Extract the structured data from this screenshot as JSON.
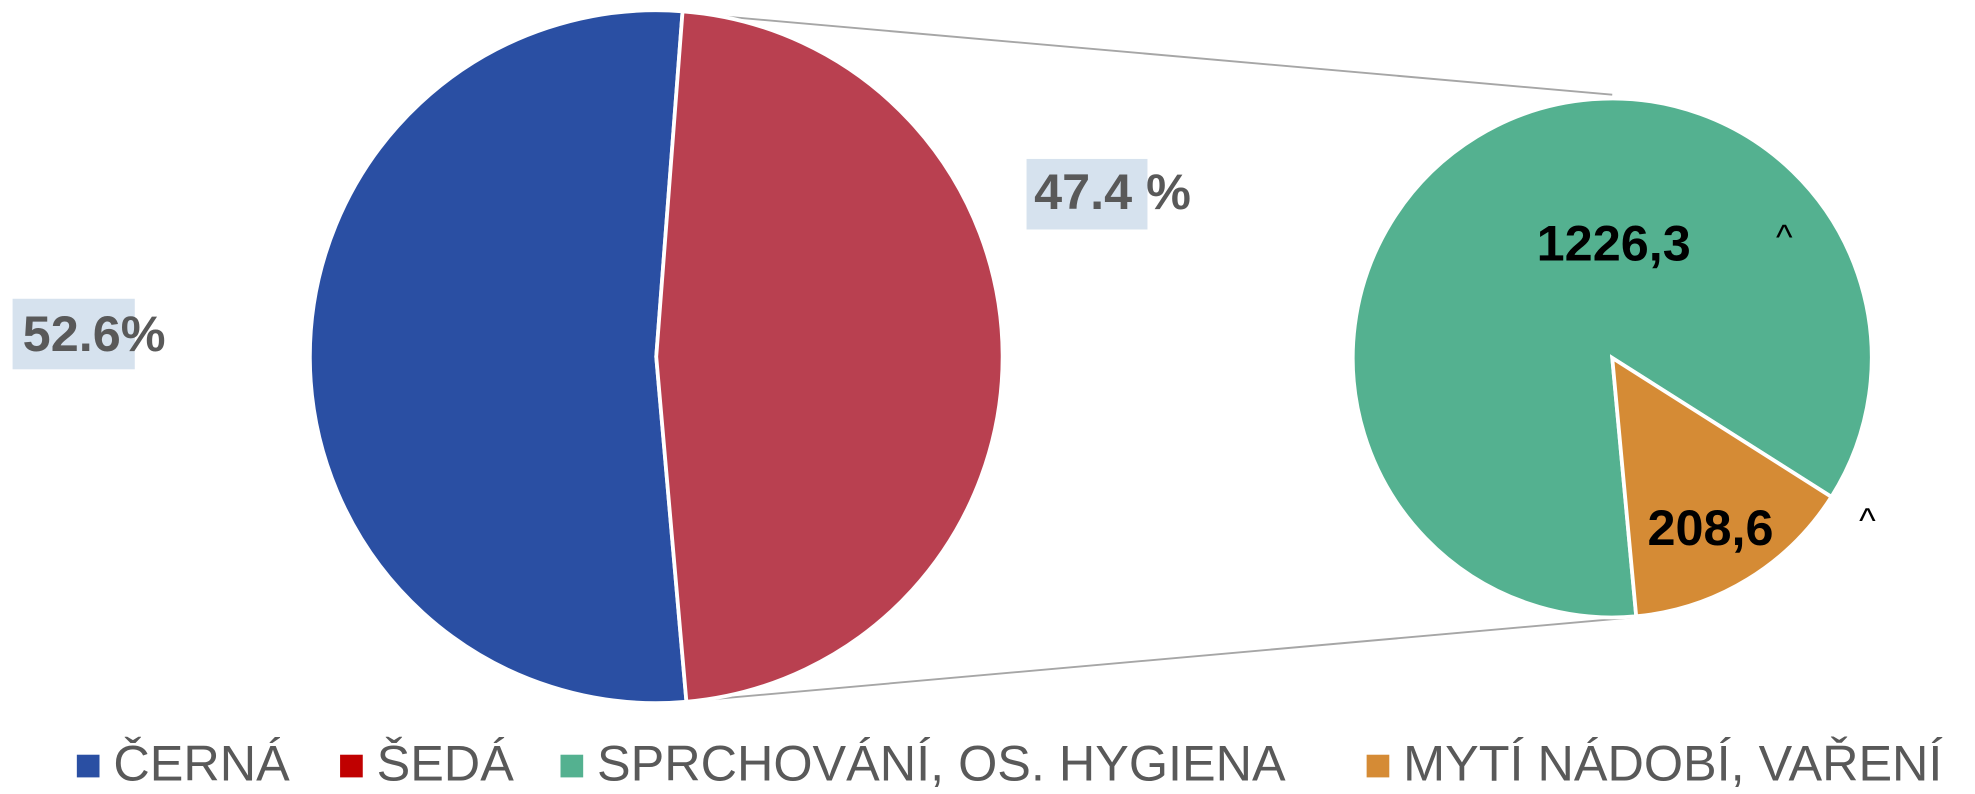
{
  "chart_data": {
    "type": "pie-of-pie",
    "main": {
      "categories": [
        "ČERNÁ",
        "ŠEDÁ"
      ],
      "values": [
        52.6,
        47.4
      ],
      "value_labels": [
        "52.6%",
        "47.4 %"
      ],
      "colors": [
        "#2a4fa3",
        "#b94050"
      ]
    },
    "secondary": {
      "categories": [
        "SPRCHOVÁNÍ, OS. HYGIENA",
        "MYTÍ NÁDOBÍ, VAŘENÍ"
      ],
      "values": [
        1226.3,
        208.6
      ],
      "value_labels": [
        "1226,3",
        "208,6"
      ],
      "colors": [
        "#54b190",
        "#d58b35"
      ]
    },
    "annotations": [
      "^",
      "^"
    ],
    "legend_colors": [
      "#2a4fa3",
      "#c00000",
      "#54b190",
      "#d58b35"
    ]
  }
}
